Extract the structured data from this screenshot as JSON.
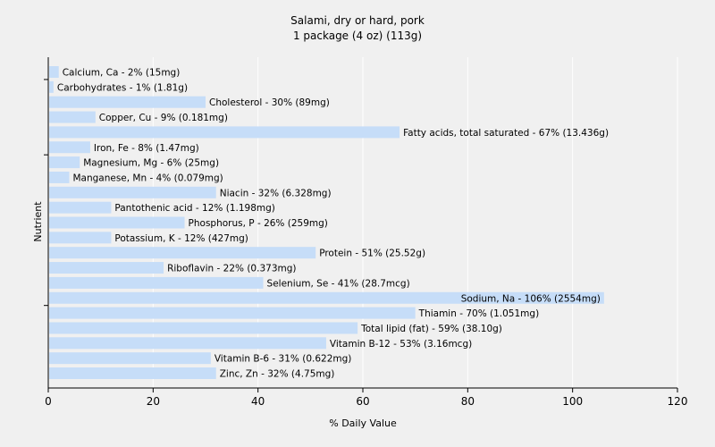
{
  "chart_data": {
    "type": "bar",
    "orientation": "horizontal",
    "title": "Salami, dry or hard, pork",
    "subtitle": "1 package (4 oz) (113g)",
    "xlabel": "% Daily Value",
    "ylabel": "Nutrient",
    "xlim": [
      0,
      120
    ],
    "xticks": [
      0,
      20,
      40,
      60,
      80,
      100,
      120
    ],
    "grid": true,
    "bar_color": "#c6ddf8",
    "gridline_color": "#ffffff",
    "background_color": "#f0f0f0",
    "categories": [
      "Calcium, Ca",
      "Carbohydrates",
      "Cholesterol",
      "Copper, Cu",
      "Fatty acids, total saturated",
      "Iron, Fe",
      "Magnesium, Mg",
      "Manganese, Mn",
      "Niacin",
      "Pantothenic acid",
      "Phosphorus, P",
      "Potassium, K",
      "Protein",
      "Riboflavin",
      "Selenium, Se",
      "Sodium, Na",
      "Thiamin",
      "Total lipid (fat)",
      "Vitamin B-12",
      "Vitamin B-6",
      "Zinc, Zn"
    ],
    "values": [
      2,
      1,
      30,
      9,
      67,
      8,
      6,
      4,
      32,
      12,
      26,
      12,
      51,
      22,
      41,
      106,
      70,
      59,
      53,
      31,
      32
    ],
    "labels": [
      "Calcium, Ca - 2% (15mg)",
      "Carbohydrates - 1% (1.81g)",
      "Cholesterol - 30% (89mg)",
      "Copper, Cu - 9% (0.181mg)",
      "Fatty acids, total saturated - 67% (13.436g)",
      "Iron, Fe - 8% (1.47mg)",
      "Magnesium, Mg - 6% (25mg)",
      "Manganese, Mn - 4% (0.079mg)",
      "Niacin - 32% (6.328mg)",
      "Pantothenic acid - 12% (1.198mg)",
      "Phosphorus, P - 26% (259mg)",
      "Potassium, K - 12% (427mg)",
      "Protein - 51% (25.52g)",
      "Riboflavin - 22% (0.373mg)",
      "Selenium, Se - 41% (28.7mcg)",
      "Sodium, Na - 106% (2554mg)",
      "Thiamin - 70% (1.051mg)",
      "Total lipid (fat) - 59% (38.10g)",
      "Vitamin B-12 - 53% (3.16mcg)",
      "Vitamin B-6 - 31% (0.622mg)",
      "Zinc, Zn - 32% (4.75mg)"
    ]
  }
}
